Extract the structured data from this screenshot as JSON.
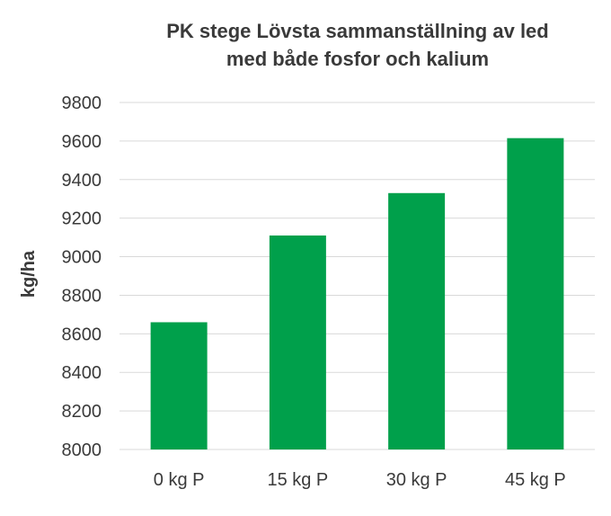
{
  "chart_data": {
    "type": "bar",
    "title_lines": [
      "PK stege Lövsta sammanställning av led",
      "med både fosfor och kalium"
    ],
    "ylabel": "kg/ha",
    "xlabel": "",
    "categories": [
      "0 kg P",
      "15 kg P",
      "30 kg P",
      "45 kg P"
    ],
    "values": [
      8660,
      9110,
      9330,
      9615
    ],
    "ylim": [
      8000,
      9800
    ],
    "yticks": [
      8000,
      8200,
      8400,
      8600,
      8800,
      9000,
      9200,
      9400,
      9600,
      9800
    ],
    "grid": true,
    "legend": "none",
    "bar_color": "#00a04b"
  }
}
